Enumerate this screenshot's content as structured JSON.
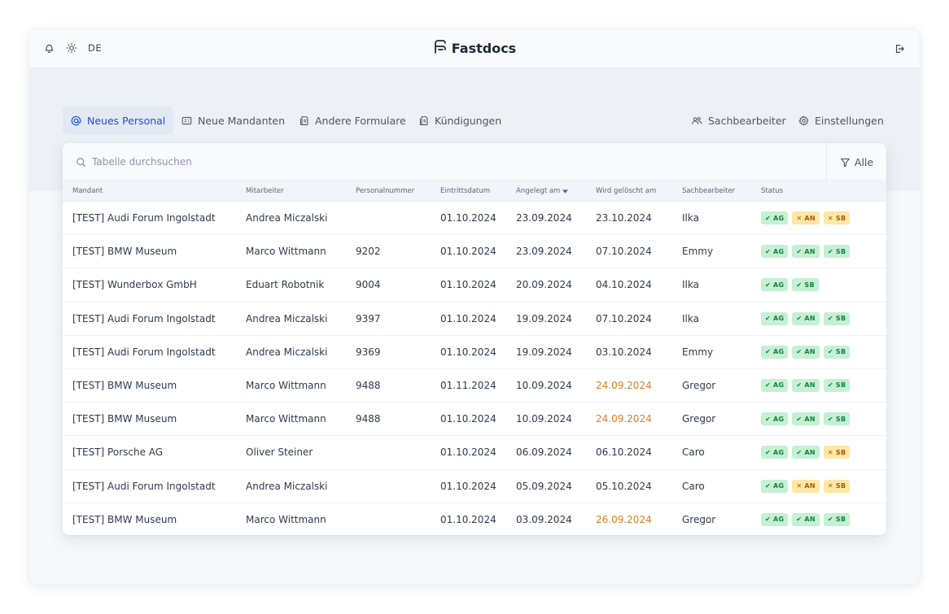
{
  "app": {
    "name": "Fastdocs",
    "language": "DE"
  },
  "tabs": [
    {
      "label": "Neues Personal",
      "icon": "at-sign-icon",
      "active": true
    },
    {
      "label": "Neue Mandanten",
      "icon": "id-card-icon",
      "active": false
    },
    {
      "label": "Andere Formulare",
      "icon": "forms-icon",
      "active": false
    },
    {
      "label": "Kündigungen",
      "icon": "forms-icon",
      "active": false
    },
    {
      "label": "Sachbearbeiter",
      "icon": "users-icon",
      "active": false
    },
    {
      "label": "Einstellungen",
      "icon": "gear-icon",
      "active": false
    }
  ],
  "search": {
    "placeholder": "Tabelle durchsuchen"
  },
  "filter": {
    "label": "Alle"
  },
  "table": {
    "columns": [
      "Mandant",
      "Mitarbeiter",
      "Personalnummer",
      "Eintrittsdatum",
      "Angelegt am",
      "Wird gelöscht am",
      "Sachbearbeiter",
      "Status"
    ],
    "sorted_column": "Angelegt am",
    "rows": [
      {
        "mandant": "[TEST] Audi Forum Ingolstadt",
        "mitarbeiter": "Andrea Miczalski",
        "personalnummer": "",
        "eintritt": "01.10.2024",
        "angelegt": "23.09.2024",
        "geloescht": "23.10.2024",
        "geloescht_warn": false,
        "sachbearbeiter": "Ilka",
        "status": [
          {
            "label": "AG",
            "ok": true
          },
          {
            "label": "AN",
            "ok": false
          },
          {
            "label": "SB",
            "ok": false
          }
        ]
      },
      {
        "mandant": "[TEST] BMW Museum",
        "mitarbeiter": "Marco Wittmann",
        "personalnummer": "9202",
        "eintritt": "01.10.2024",
        "angelegt": "23.09.2024",
        "geloescht": "07.10.2024",
        "geloescht_warn": false,
        "sachbearbeiter": "Emmy",
        "status": [
          {
            "label": "AG",
            "ok": true
          },
          {
            "label": "AN",
            "ok": true
          },
          {
            "label": "SB",
            "ok": true
          }
        ]
      },
      {
        "mandant": "[TEST] Wunderbox GmbH",
        "mitarbeiter": "Eduart Robotnik",
        "personalnummer": "9004",
        "eintritt": "01.10.2024",
        "angelegt": "20.09.2024",
        "geloescht": "04.10.2024",
        "geloescht_warn": false,
        "sachbearbeiter": "Ilka",
        "status": [
          {
            "label": "AG",
            "ok": true
          },
          {
            "label": "SB",
            "ok": true
          }
        ]
      },
      {
        "mandant": "[TEST] Audi Forum Ingolstadt",
        "mitarbeiter": "Andrea Miczalski",
        "personalnummer": "9397",
        "eintritt": "01.10.2024",
        "angelegt": "19.09.2024",
        "geloescht": "07.10.2024",
        "geloescht_warn": false,
        "sachbearbeiter": "Ilka",
        "status": [
          {
            "label": "AG",
            "ok": true
          },
          {
            "label": "AN",
            "ok": true
          },
          {
            "label": "SB",
            "ok": true
          }
        ]
      },
      {
        "mandant": "[TEST] Audi Forum Ingolstadt",
        "mitarbeiter": "Andrea Miczalski",
        "personalnummer": "9369",
        "eintritt": "01.10.2024",
        "angelegt": "19.09.2024",
        "geloescht": "03.10.2024",
        "geloescht_warn": false,
        "sachbearbeiter": "Emmy",
        "status": [
          {
            "label": "AG",
            "ok": true
          },
          {
            "label": "AN",
            "ok": true
          },
          {
            "label": "SB",
            "ok": true
          }
        ]
      },
      {
        "mandant": "[TEST] BMW Museum",
        "mitarbeiter": "Marco Wittmann",
        "personalnummer": "9488",
        "eintritt": "01.11.2024",
        "angelegt": "10.09.2024",
        "geloescht": "24.09.2024",
        "geloescht_warn": true,
        "sachbearbeiter": "Gregor",
        "status": [
          {
            "label": "AG",
            "ok": true
          },
          {
            "label": "AN",
            "ok": true
          },
          {
            "label": "SB",
            "ok": true
          }
        ]
      },
      {
        "mandant": "[TEST] BMW Museum",
        "mitarbeiter": "Marco Wittmann",
        "personalnummer": "9488",
        "eintritt": "01.10.2024",
        "angelegt": "10.09.2024",
        "geloescht": "24.09.2024",
        "geloescht_warn": true,
        "sachbearbeiter": "Gregor",
        "status": [
          {
            "label": "AG",
            "ok": true
          },
          {
            "label": "AN",
            "ok": true
          },
          {
            "label": "SB",
            "ok": true
          }
        ]
      },
      {
        "mandant": "[TEST] Porsche AG",
        "mitarbeiter": "Oliver Steiner",
        "personalnummer": "",
        "eintritt": "01.10.2024",
        "angelegt": "06.09.2024",
        "geloescht": "06.10.2024",
        "geloescht_warn": false,
        "sachbearbeiter": "Caro",
        "status": [
          {
            "label": "AG",
            "ok": true
          },
          {
            "label": "AN",
            "ok": true
          },
          {
            "label": "SB",
            "ok": false
          }
        ]
      },
      {
        "mandant": "[TEST] Audi Forum Ingolstadt",
        "mitarbeiter": "Andrea Miczalski",
        "personalnummer": "",
        "eintritt": "01.10.2024",
        "angelegt": "05.09.2024",
        "geloescht": "05.10.2024",
        "geloescht_warn": false,
        "sachbearbeiter": "Caro",
        "status": [
          {
            "label": "AG",
            "ok": true
          },
          {
            "label": "AN",
            "ok": false
          },
          {
            "label": "SB",
            "ok": false
          }
        ]
      },
      {
        "mandant": "[TEST] BMW Museum",
        "mitarbeiter": "Marco Wittmann",
        "personalnummer": "",
        "eintritt": "01.10.2024",
        "angelegt": "03.09.2024",
        "geloescht": "26.09.2024",
        "geloescht_warn": true,
        "sachbearbeiter": "Gregor",
        "status": [
          {
            "label": "AG",
            "ok": true
          },
          {
            "label": "AN",
            "ok": true
          },
          {
            "label": "SB",
            "ok": true
          }
        ]
      }
    ]
  },
  "colors": {
    "accent": "#1d4ed8",
    "ok_bg": "#c4f0d4",
    "ok_text": "#15803d",
    "bad_bg": "#fbe7a6",
    "bad_text": "#b45309",
    "warn_date": "#e07c22"
  }
}
